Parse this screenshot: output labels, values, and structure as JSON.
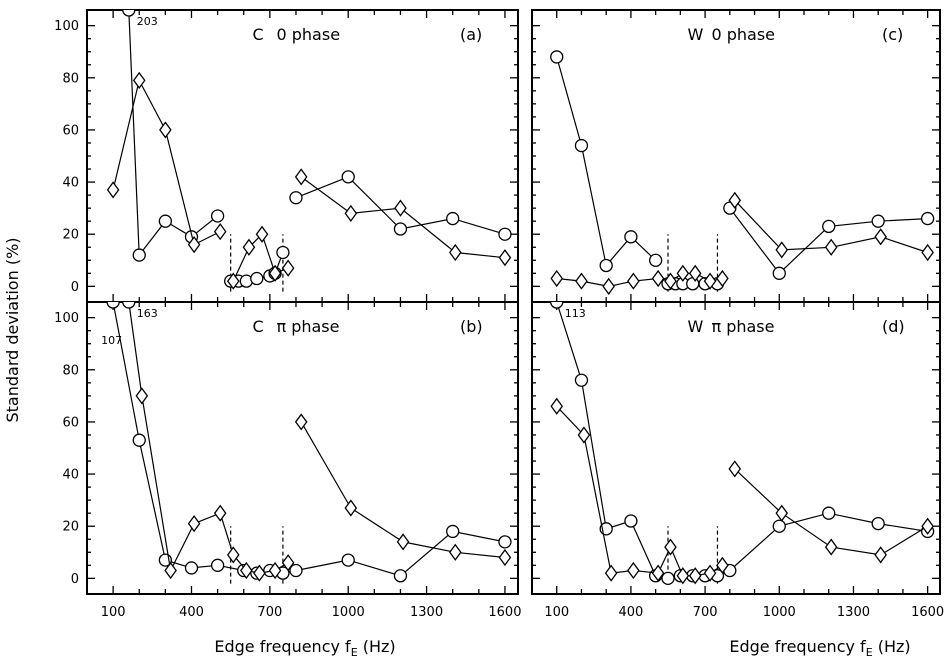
{
  "chart_data": {
    "type": "line",
    "ylabel": "Standard deviation (%)",
    "xlabel_text": "Edge frequency f",
    "xlabel_sub": "E",
    "xlabel_unit": " (Hz)",
    "xticks": [
      "100",
      "400",
      "700",
      "1000",
      "1300",
      "1600"
    ],
    "yticks": [
      "0",
      "20",
      "40",
      "60",
      "80",
      "100"
    ],
    "xlim": [
      0,
      1650
    ],
    "ylim": [
      -6,
      106
    ],
    "markers": {
      "series_1": "circle",
      "series_2": "diamond"
    },
    "panels": [
      {
        "id": "a",
        "title_letter": "C",
        "title_phase": "0 phase",
        "label": "(a)",
        "dashed_at": [
          550,
          750
        ],
        "offscale": [
          {
            "x": 160,
            "label": "203"
          }
        ],
        "series": [
          {
            "segments": [
              [
                [
                  160,
                  106
                ],
                [
                  200,
                  12
                ],
                [
                  300,
                  25
                ],
                [
                  400,
                  19
                ],
                [
                  500,
                  27
                ]
              ],
              [
                [
                  550,
                  2
                ],
                [
                  580,
                  2
                ],
                [
                  610,
                  2
                ],
                [
                  650,
                  3
                ],
                [
                  700,
                  4
                ],
                [
                  720,
                  5
                ],
                [
                  750,
                  13
                ]
              ],
              [
                [
                  800,
                  34
                ],
                [
                  1000,
                  42
                ],
                [
                  1200,
                  22
                ],
                [
                  1400,
                  26
                ],
                [
                  1600,
                  20
                ]
              ]
            ]
          },
          {
            "segments": [
              [
                [
                  100,
                  37
                ],
                [
                  200,
                  79
                ],
                [
                  300,
                  60
                ],
                [
                  410,
                  16
                ],
                [
                  510,
                  21
                ]
              ],
              [
                [
                  560,
                  2
                ],
                [
                  620,
                  15
                ],
                [
                  670,
                  20
                ],
                [
                  720,
                  5
                ],
                [
                  770,
                  7
                ]
              ],
              [
                [
                  820,
                  42
                ],
                [
                  1010,
                  28
                ],
                [
                  1200,
                  30
                ],
                [
                  1410,
                  13
                ],
                [
                  1600,
                  11
                ]
              ]
            ]
          }
        ]
      },
      {
        "id": "b",
        "title_letter": "C",
        "title_phase": "π phase",
        "label": "(b)",
        "dashed_at": [
          550,
          750
        ],
        "offscale": [
          {
            "x": 160,
            "label": "163"
          },
          {
            "x": 100,
            "label": "107"
          }
        ],
        "series": [
          {
            "segments": [
              [
                [
                  100,
                  106
                ],
                [
                  200,
                  53
                ],
                [
                  300,
                  7
                ],
                [
                  400,
                  4
                ],
                [
                  500,
                  5
                ],
                [
                  600,
                  3
                ],
                [
                  650,
                  2
                ],
                [
                  700,
                  3
                ],
                [
                  750,
                  2
                ],
                [
                  800,
                  3
                ],
                [
                  1000,
                  7
                ],
                [
                  1200,
                  1
                ],
                [
                  1400,
                  18
                ],
                [
                  1600,
                  14
                ]
              ]
            ]
          },
          {
            "segments": [
              [
                [
                  160,
                  106
                ],
                [
                  210,
                  70
                ],
                [
                  320,
                  3
                ],
                [
                  410,
                  21
                ],
                [
                  510,
                  25
                ],
                [
                  560,
                  9
                ],
                [
                  610,
                  3
                ],
                [
                  660,
                  2
                ],
                [
                  720,
                  3
                ],
                [
                  770,
                  6
                ]
              ],
              [
                [
                  820,
                  60
                ],
                [
                  1010,
                  27
                ],
                [
                  1210,
                  14
                ],
                [
                  1410,
                  10
                ],
                [
                  1600,
                  8
                ]
              ]
            ]
          }
        ]
      },
      {
        "id": "c",
        "title_letter": "W",
        "title_phase": "0 phase",
        "label": "(c)",
        "dashed_at": [
          550,
          750
        ],
        "offscale": [],
        "series": [
          {
            "segments": [
              [
                [
                  100,
                  88
                ],
                [
                  200,
                  54
                ],
                [
                  300,
                  8
                ],
                [
                  400,
                  19
                ],
                [
                  500,
                  10
                ]
              ],
              [
                [
                  550,
                  1
                ],
                [
                  580,
                  1
                ],
                [
                  610,
                  1
                ],
                [
                  650,
                  1
                ],
                [
                  700,
                  1
                ],
                [
                  750,
                  1
                ]
              ],
              [
                [
                  800,
                  30
                ],
                [
                  1000,
                  5
                ],
                [
                  1200,
                  23
                ],
                [
                  1400,
                  25
                ],
                [
                  1600,
                  26
                ]
              ]
            ]
          },
          {
            "segments": [
              [
                [
                  100,
                  3
                ],
                [
                  200,
                  2
                ],
                [
                  310,
                  0
                ],
                [
                  410,
                  2
                ],
                [
                  510,
                  3
                ],
                [
                  560,
                  2
                ],
                [
                  610,
                  5
                ],
                [
                  660,
                  5
                ],
                [
                  720,
                  2
                ],
                [
                  770,
                  3
                ]
              ],
              [
                [
                  820,
                  33
                ],
                [
                  1010,
                  14
                ],
                [
                  1210,
                  15
                ],
                [
                  1410,
                  19
                ],
                [
                  1600,
                  13
                ]
              ]
            ]
          }
        ]
      },
      {
        "id": "d",
        "title_letter": "W",
        "title_phase": "π phase",
        "label": "(d)",
        "dashed_at": [
          550,
          750
        ],
        "offscale": [
          {
            "x": 100,
            "label": "113"
          }
        ],
        "series": [
          {
            "segments": [
              [
                [
                  100,
                  106
                ],
                [
                  200,
                  76
                ],
                [
                  300,
                  19
                ],
                [
                  400,
                  22
                ],
                [
                  500,
                  1
                ],
                [
                  550,
                  0
                ],
                [
                  600,
                  1
                ],
                [
                  650,
                  1
                ],
                [
                  700,
                  1
                ],
                [
                  750,
                  1
                ],
                [
                  800,
                  3
                ],
                [
                  1000,
                  20
                ],
                [
                  1200,
                  25
                ],
                [
                  1400,
                  21
                ],
                [
                  1600,
                  18
                ]
              ]
            ]
          },
          {
            "segments": [
              [
                [
                  100,
                  66
                ],
                [
                  210,
                  55
                ],
                [
                  320,
                  2
                ],
                [
                  410,
                  3
                ],
                [
                  510,
                  2
                ],
                [
                  560,
                  12
                ],
                [
                  610,
                  1
                ],
                [
                  660,
                  1
                ],
                [
                  720,
                  2
                ],
                [
                  770,
                  5
                ]
              ],
              [
                [
                  820,
                  42
                ],
                [
                  1010,
                  25
                ],
                [
                  1210,
                  12
                ],
                [
                  1410,
                  9
                ],
                [
                  1600,
                  20
                ]
              ]
            ]
          }
        ]
      }
    ]
  }
}
